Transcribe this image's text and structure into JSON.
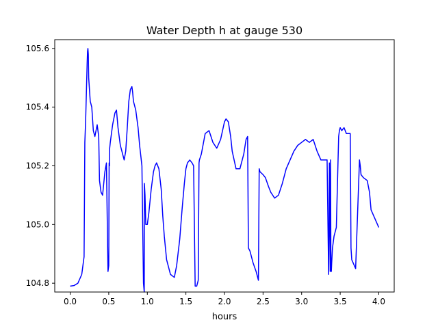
{
  "chart_data": {
    "type": "line",
    "title": "Water Depth h at gauge 530",
    "xlabel": "hours",
    "ylabel": "",
    "xlim": [
      -0.2,
      4.2
    ],
    "ylim": [
      104.77,
      105.63
    ],
    "x_ticks": [
      0.0,
      0.5,
      1.0,
      1.5,
      2.0,
      2.5,
      3.0,
      3.5,
      4.0
    ],
    "x_tick_labels": [
      "0.0",
      "0.5",
      "1.0",
      "1.5",
      "2.0",
      "2.5",
      "3.0",
      "3.5",
      "4.0"
    ],
    "y_ticks": [
      104.8,
      105.0,
      105.2,
      105.4,
      105.6
    ],
    "y_tick_labels": [
      "104.8",
      "105.0",
      "105.2",
      "105.4",
      "105.6"
    ],
    "grid": false,
    "line_color": "#0000ff",
    "series": [
      {
        "x": [
          0.0,
          0.05,
          0.1,
          0.15,
          0.18,
          0.19,
          0.2,
          0.21,
          0.215,
          0.22,
          0.225,
          0.23,
          0.235,
          0.24,
          0.26,
          0.28,
          0.3,
          0.32,
          0.35,
          0.37,
          0.38,
          0.4,
          0.42,
          0.45,
          0.47,
          0.49,
          0.5,
          0.505,
          0.51,
          0.512,
          0.52,
          0.55,
          0.58,
          0.6,
          0.62,
          0.65,
          0.7,
          0.72,
          0.74,
          0.76,
          0.78,
          0.8,
          0.81,
          0.82,
          0.85,
          0.88,
          0.9,
          0.93,
          0.95,
          0.96,
          0.962,
          0.97,
          0.975,
          0.98,
          1.0,
          1.02,
          1.05,
          1.08,
          1.1,
          1.12,
          1.15,
          1.18,
          1.2,
          1.22,
          1.25,
          1.3,
          1.35,
          1.38,
          1.42,
          1.45,
          1.48,
          1.5,
          1.52,
          1.55,
          1.58,
          1.6,
          1.62,
          1.64,
          1.66,
          1.67,
          1.675,
          1.7,
          1.75,
          1.8,
          1.85,
          1.9,
          1.95,
          2.0,
          2.02,
          2.05,
          2.08,
          2.1,
          2.15,
          2.2,
          2.25,
          2.28,
          2.3,
          2.31,
          2.33,
          2.37,
          2.41,
          2.44,
          2.45,
          2.46,
          2.5,
          2.53,
          2.57,
          2.6,
          2.65,
          2.7,
          2.75,
          2.8,
          2.85,
          2.9,
          2.95,
          3.0,
          3.05,
          3.1,
          3.15,
          3.2,
          3.25,
          3.3,
          3.33,
          3.35,
          3.36,
          3.37,
          3.375,
          3.38,
          3.385,
          3.39,
          3.4,
          3.42,
          3.45,
          3.48,
          3.49,
          3.5,
          3.52,
          3.55,
          3.58,
          3.6,
          3.63,
          3.64,
          3.65,
          3.7,
          3.75,
          3.76,
          3.77,
          3.8,
          3.85,
          3.88,
          3.9,
          3.95,
          4.0
        ],
        "y": [
          104.79,
          104.792,
          104.8,
          104.83,
          104.89,
          105.28,
          105.35,
          105.45,
          105.5,
          105.55,
          105.59,
          105.6,
          105.58,
          105.5,
          105.42,
          105.4,
          105.32,
          105.3,
          105.34,
          105.3,
          105.15,
          105.11,
          105.1,
          105.18,
          105.21,
          104.84,
          104.86,
          105.21,
          105.2,
          105.26,
          105.28,
          105.34,
          105.38,
          105.39,
          105.33,
          105.27,
          105.22,
          105.25,
          105.33,
          105.42,
          105.46,
          105.47,
          105.45,
          105.42,
          105.39,
          105.33,
          105.27,
          105.2,
          104.8,
          104.77,
          105.14,
          105.1,
          105.05,
          105.0,
          105.0,
          105.04,
          105.12,
          105.18,
          105.2,
          105.21,
          105.19,
          105.12,
          105.03,
          104.96,
          104.88,
          104.83,
          104.82,
          104.86,
          104.95,
          105.05,
          105.14,
          105.19,
          105.21,
          105.22,
          105.21,
          105.2,
          104.79,
          104.79,
          104.81,
          105.21,
          105.22,
          105.24,
          105.31,
          105.32,
          105.28,
          105.26,
          105.29,
          105.35,
          105.36,
          105.35,
          105.3,
          105.25,
          105.19,
          105.19,
          105.24,
          105.29,
          105.3,
          104.92,
          104.91,
          104.87,
          104.84,
          104.81,
          105.19,
          105.18,
          105.17,
          105.16,
          105.13,
          105.11,
          105.09,
          105.1,
          105.14,
          105.19,
          105.22,
          105.25,
          105.27,
          105.28,
          105.29,
          105.28,
          105.29,
          105.25,
          105.22,
          105.22,
          105.22,
          104.83,
          105.21,
          104.84,
          105.22,
          104.85,
          104.84,
          104.87,
          104.92,
          104.96,
          104.99,
          105.3,
          105.32,
          105.33,
          105.32,
          105.33,
          105.31,
          105.31,
          105.31,
          104.92,
          104.88,
          104.85,
          105.22,
          105.2,
          105.17,
          105.16,
          105.15,
          105.11,
          105.05,
          105.02,
          104.99
        ]
      }
    ]
  }
}
